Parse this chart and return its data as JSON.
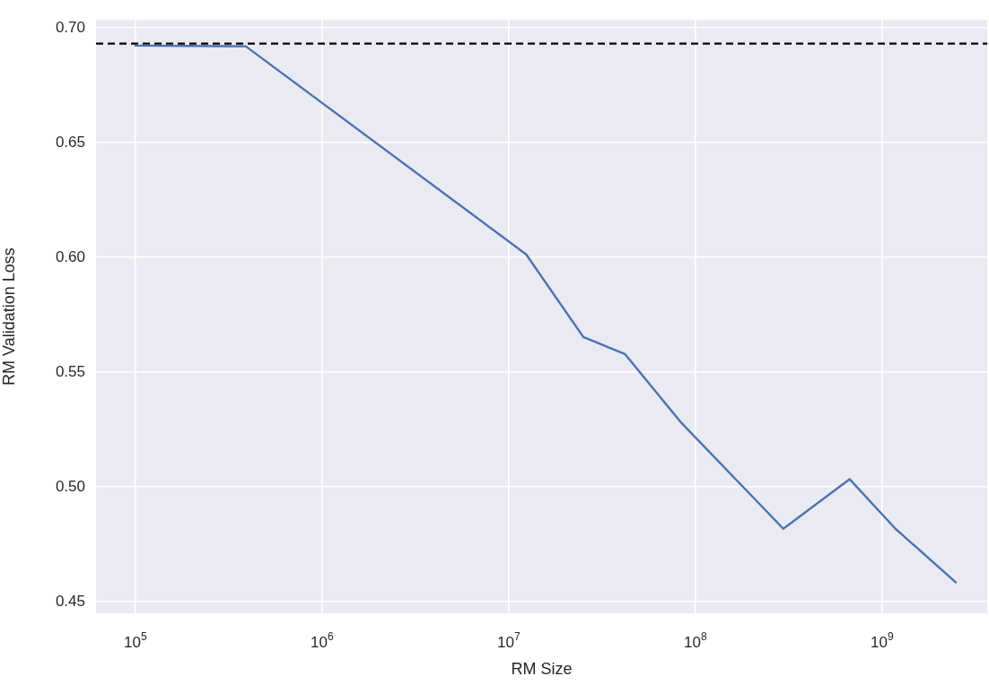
{
  "chart_data": {
    "type": "line",
    "xlabel": "RM Size",
    "ylabel": "RM Validation Loss",
    "x": [
      100000,
      390000,
      12400000,
      25100000,
      41900000,
      84000000,
      296000000,
      670000000,
      1180000000,
      2480000000
    ],
    "series": [
      {
        "color": "#4c72b0",
        "values": [
          0.6922,
          0.6919,
          0.6013,
          0.5653,
          0.5579,
          0.528,
          0.4818,
          0.5034,
          0.4818,
          0.4585
        ]
      }
    ],
    "log": "x",
    "xlim": [
      61500,
      3660000000
    ],
    "xticks": [
      {
        "value": 100000,
        "label": "10$^{5}$"
      },
      {
        "value": 1000000,
        "label": "10$^{6}$"
      },
      {
        "value": 10000000,
        "label": "10$^{7}$"
      },
      {
        "value": 100000000,
        "label": "10$^{8}$"
      },
      {
        "value": 1000000000,
        "label": "10$^{9}$"
      }
    ],
    "ylim": [
      0.445,
      0.7034
    ],
    "yticks": [
      0.45,
      {
        "value": 0.5,
        "label": "0.50"
      },
      0.55,
      {
        "value": 0.6,
        "label": "0.60"
      },
      0.65,
      {
        "value": 0.7,
        "label": "0.70"
      }
    ],
    "ref_lines": [
      {
        "axis": "y",
        "value": 0.6931,
        "color": "#000000",
        "line_style": "dashed"
      }
    ],
    "grid": true,
    "legend": false,
    "marker": "none",
    "line_style": "solid"
  }
}
